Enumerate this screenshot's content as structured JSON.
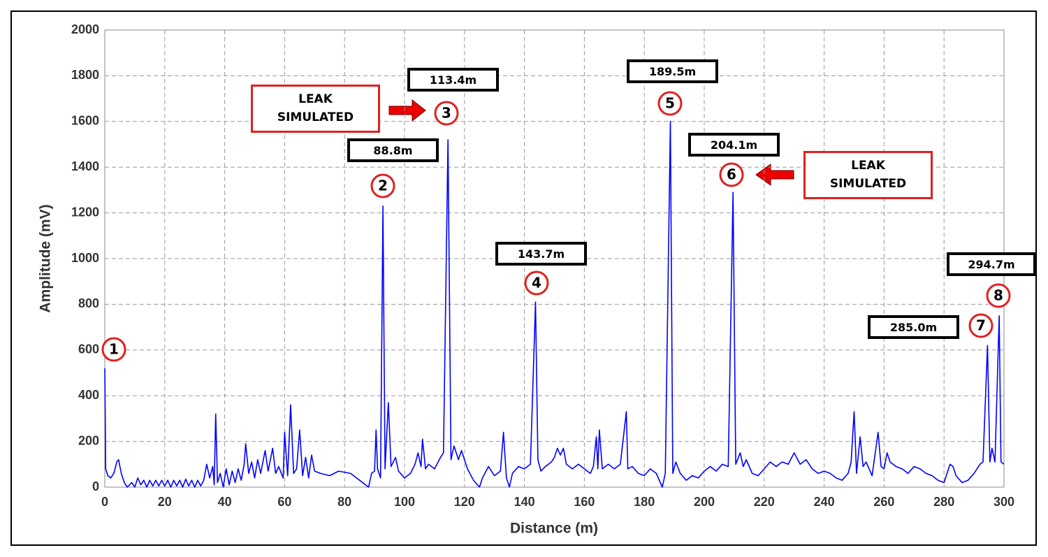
{
  "chart_data": {
    "type": "line",
    "xlabel": "Distance (m)",
    "ylabel": "Amplitude (mV)",
    "xlim": [
      0,
      300
    ],
    "xticks": [
      0,
      20,
      40,
      60,
      80,
      100,
      120,
      140,
      160,
      180,
      200,
      220,
      240,
      260,
      280,
      300
    ],
    "ylim": [
      0,
      2000
    ],
    "yticks": [
      0,
      200,
      400,
      600,
      800,
      1000,
      1200,
      1400,
      1600,
      1800,
      2000
    ],
    "grid": true,
    "color": "#0000ff",
    "x": [
      0,
      0.3,
      1,
      2,
      3,
      4,
      4.6,
      5.5,
      6.5,
      7.5,
      9,
      10,
      11,
      12,
      13,
      14,
      15,
      16,
      17,
      18,
      19,
      20,
      21,
      22,
      23,
      24,
      25,
      26,
      27,
      28,
      29,
      30,
      31,
      32,
      33,
      34,
      35,
      36,
      36.5,
      37,
      37.6,
      38.5,
      39.5,
      40.5,
      41.5,
      42.5,
      43.5,
      44.5,
      45.5,
      46.5,
      47,
      48,
      49,
      50,
      51,
      52,
      53.5,
      54.5,
      56,
      57,
      58,
      59.5,
      60,
      61,
      62,
      63,
      64,
      65,
      66,
      67,
      68,
      69,
      70,
      72,
      75,
      78,
      82,
      85,
      88,
      89,
      90,
      90.5,
      91,
      92,
      92.8,
      93.5,
      94.6,
      95.5,
      97,
      98,
      100,
      102,
      103.5,
      104.5,
      105.5,
      106,
      107,
      108,
      110,
      112,
      113,
      114.5,
      115.5,
      116.5,
      118,
      119,
      120,
      121,
      123,
      125,
      126,
      128,
      130,
      132,
      133,
      134,
      135,
      136,
      138,
      140,
      142,
      143.7,
      144.5,
      145.5,
      147,
      149,
      150,
      151,
      152,
      153,
      154,
      156,
      158,
      160,
      162,
      163,
      164,
      164.5,
      165,
      166,
      168,
      170,
      172,
      174,
      174.5,
      176,
      178,
      180,
      182,
      184,
      186,
      187,
      188.7,
      189.5,
      190.5,
      192,
      194,
      196,
      198,
      200,
      202,
      204,
      206,
      208,
      209.6,
      210.5,
      212,
      213,
      214,
      216,
      218,
      220,
      222,
      224,
      226,
      228,
      230,
      232,
      234,
      236,
      238,
      240,
      242,
      244,
      246,
      248,
      249,
      250,
      250.8,
      252,
      253,
      254,
      256,
      258,
      259,
      260,
      261,
      262,
      264,
      266,
      268,
      270,
      272,
      274,
      276,
      278,
      280,
      282,
      283,
      284,
      286,
      288,
      290,
      292,
      293,
      294.5,
      295.3,
      296,
      297,
      298.4,
      299,
      300
    ],
    "values": [
      520,
      80,
      50,
      40,
      60,
      110,
      120,
      60,
      20,
      0,
      20,
      0,
      40,
      10,
      30,
      0,
      30,
      5,
      30,
      5,
      30,
      5,
      30,
      0,
      30,
      5,
      30,
      0,
      35,
      5,
      30,
      0,
      30,
      5,
      30,
      100,
      40,
      90,
      10,
      320,
      20,
      60,
      0,
      80,
      10,
      70,
      20,
      80,
      30,
      100,
      190,
      60,
      110,
      40,
      120,
      60,
      160,
      70,
      170,
      60,
      90,
      40,
      240,
      50,
      360,
      60,
      80,
      250,
      50,
      130,
      40,
      140,
      70,
      60,
      50,
      70,
      60,
      30,
      0,
      60,
      70,
      250,
      80,
      40,
      1230,
      80,
      370,
      90,
      130,
      70,
      40,
      60,
      100,
      150,
      90,
      210,
      80,
      100,
      80,
      130,
      150,
      1520,
      120,
      180,
      120,
      160,
      120,
      80,
      30,
      0,
      40,
      90,
      50,
      70,
      240,
      40,
      0,
      60,
      90,
      80,
      100,
      810,
      120,
      70,
      90,
      110,
      130,
      170,
      140,
      170,
      100,
      80,
      100,
      80,
      60,
      90,
      220,
      80,
      250,
      80,
      100,
      80,
      100,
      330,
      80,
      90,
      60,
      50,
      80,
      60,
      0,
      60,
      1600,
      60,
      110,
      60,
      30,
      50,
      40,
      70,
      90,
      70,
      100,
      90,
      1290,
      100,
      150,
      90,
      120,
      60,
      50,
      80,
      110,
      90,
      110,
      100,
      150,
      100,
      120,
      80,
      60,
      70,
      60,
      40,
      30,
      60,
      110,
      330,
      60,
      220,
      90,
      110,
      50,
      240,
      90,
      80,
      150,
      110,
      90,
      80,
      60,
      90,
      80,
      60,
      50,
      30,
      20,
      100,
      90,
      50,
      20,
      30,
      60,
      100,
      110,
      620,
      110,
      170,
      110,
      750,
      110,
      100
    ],
    "markers": [
      "1",
      "2",
      "3",
      "4",
      "5",
      "6",
      "7",
      "8"
    ],
    "distance_labels": [
      "88.8m",
      "113.4m",
      "143.7m",
      "189.5m",
      "204.1m",
      "285.0m",
      "294.7m"
    ],
    "leak_labels": [
      "LEAK SIMULATED",
      "LEAK SIMULATED"
    ]
  }
}
